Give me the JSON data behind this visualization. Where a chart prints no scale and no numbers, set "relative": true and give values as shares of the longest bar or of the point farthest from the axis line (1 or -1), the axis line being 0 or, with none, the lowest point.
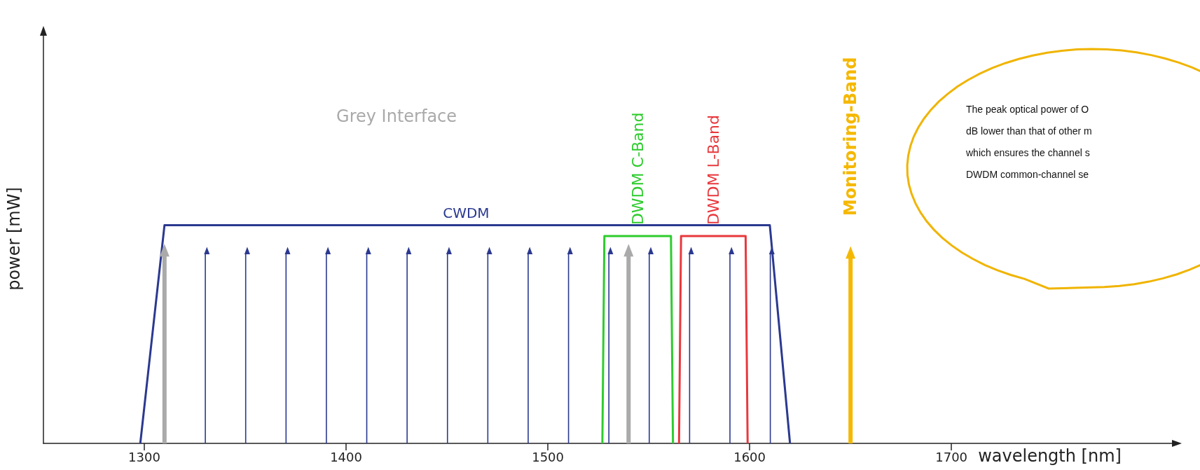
{
  "chart_data": {
    "type": "line",
    "relative": true,
    "xlabel": "wavelength [nm]",
    "ylabel": "power [mW]",
    "xlim": [
      1250,
      1810
    ],
    "xticks": [
      1300,
      1400,
      1500,
      1600,
      1700
    ],
    "grid": false,
    "legend": false,
    "series": [
      {
        "name": "CWDM",
        "color": "#2b3990",
        "x": [
          1298,
          1310,
          1610,
          1620
        ],
        "values": [
          0,
          1,
          1,
          0
        ]
      },
      {
        "name": "DWDM C-Band",
        "color": "#2ecc2e",
        "x": [
          1527,
          1528,
          1561,
          1562
        ],
        "values": [
          0,
          0.95,
          0.95,
          0
        ]
      },
      {
        "name": "DWDM L-Band",
        "color": "#e8383d",
        "x": [
          1565,
          1566,
          1598,
          1599
        ],
        "values": [
          0,
          0.95,
          0.95,
          0
        ]
      },
      {
        "type": "bar",
        "color": "#2b3990",
        "x": [
          1331,
          1351,
          1371,
          1391,
          1411,
          1431,
          1451,
          1471,
          1491,
          1511,
          1531,
          1551,
          1571,
          1591,
          1611
        ],
        "values": [
          0.87,
          0.87,
          0.87,
          0.87,
          0.87,
          0.87,
          0.87,
          0.87,
          0.87,
          0.87,
          0.87,
          0.87,
          0.87,
          0.87,
          0.87
        ]
      },
      {
        "type": "bar",
        "name": "Grey Interface",
        "color": "#aaaaaa",
        "x": [
          1310,
          1540
        ],
        "values": [
          0.86,
          0.86
        ]
      },
      {
        "type": "bar",
        "name": "Monitoring-Band",
        "color": "#f5b800",
        "x": [
          1650
        ],
        "values": [
          0.85
        ]
      }
    ],
    "annotations": [
      "The peak optical power of O",
      "dB lower than that of other m",
      "which ensures the channel s",
      "DWDM common-channel se"
    ]
  }
}
